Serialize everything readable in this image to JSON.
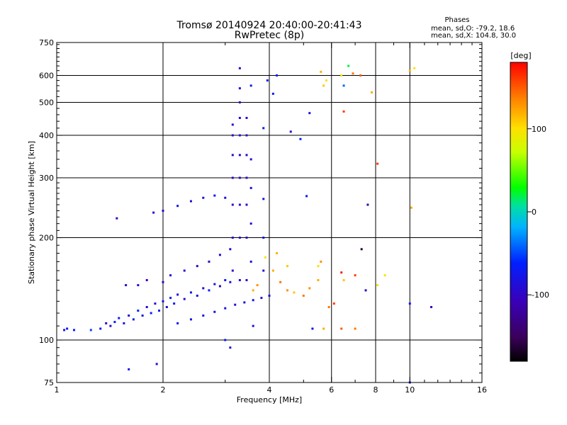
{
  "chart_data": {
    "type": "scatter",
    "title": "Tromsø 20140924 20:40:00-20:41:43",
    "subtitle": "RwPretec (8p)",
    "xlabel": "Frequency [MHz]",
    "ylabel": "Stationary phase Virtual Height [km]",
    "x_scale": "log2",
    "y_scale": "log",
    "xlim": [
      1,
      16
    ],
    "ylim": [
      75,
      750
    ],
    "x_ticks": [
      1,
      2,
      4,
      6,
      8,
      10,
      16
    ],
    "x_tick_labels": [
      "1",
      "2",
      "4",
      "6",
      "8",
      "10",
      "16"
    ],
    "x_grid": [
      2,
      4,
      6,
      8,
      10
    ],
    "y_ticks": [
      75,
      100,
      200,
      300,
      400,
      500,
      600,
      750
    ],
    "y_tick_labels": [
      "75",
      "100",
      "200",
      "300",
      "400",
      "500",
      "600",
      "750"
    ],
    "y_grid": [
      100,
      200,
      300,
      400,
      500,
      600
    ],
    "grid": true,
    "phase_box": {
      "heading": "Phases",
      "line_o": "mean, sd,O: -79.2, 18.6",
      "line_x": "mean, sd,X: 104.8, 30.0"
    },
    "colorbar": {
      "label": "[deg]",
      "min": -180,
      "max": 180,
      "ticks": [
        100,
        0,
        -100
      ],
      "tick_labels": [
        "100",
        "0",
        "-100"
      ],
      "colormap": "rainbow (black-purple-blue-cyan-green-yellow-orange-red)"
    },
    "points_note": "phase in degrees, colour-coded",
    "points": [
      [
        1.05,
        107,
        -75
      ],
      [
        1.07,
        108,
        -70
      ],
      [
        1.12,
        107,
        -60
      ],
      [
        1.25,
        107,
        -50
      ],
      [
        1.33,
        108,
        -70
      ],
      [
        1.38,
        112,
        -100
      ],
      [
        1.42,
        110,
        -90
      ],
      [
        1.46,
        113,
        -60
      ],
      [
        1.5,
        116,
        -70
      ],
      [
        1.55,
        112,
        -80
      ],
      [
        1.6,
        118,
        -90
      ],
      [
        1.65,
        115,
        -70
      ],
      [
        1.7,
        122,
        -60
      ],
      [
        1.75,
        118,
        -80
      ],
      [
        1.8,
        125,
        -100
      ],
      [
        1.85,
        120,
        -60
      ],
      [
        1.9,
        128,
        -90
      ],
      [
        1.95,
        122,
        -70
      ],
      [
        2.0,
        130,
        -80
      ],
      [
        2.05,
        125,
        -90
      ],
      [
        2.1,
        133,
        -60
      ],
      [
        2.15,
        128,
        -70
      ],
      [
        2.2,
        136,
        -80
      ],
      [
        2.3,
        132,
        -90
      ],
      [
        2.4,
        138,
        -70
      ],
      [
        2.5,
        135,
        -80
      ],
      [
        2.6,
        142,
        -90
      ],
      [
        2.7,
        140,
        -60
      ],
      [
        2.8,
        146,
        -80
      ],
      [
        2.9,
        144,
        -100
      ],
      [
        3.0,
        150,
        -70
      ],
      [
        3.1,
        148,
        -80
      ],
      [
        1.57,
        145,
        -100
      ],
      [
        1.7,
        145,
        -90
      ],
      [
        1.8,
        150,
        -110
      ],
      [
        2.0,
        148,
        -100
      ],
      [
        2.1,
        155,
        -90
      ],
      [
        2.3,
        160,
        -95
      ],
      [
        2.5,
        165,
        -100
      ],
      [
        2.7,
        170,
        -105
      ],
      [
        2.9,
        178,
        -100
      ],
      [
        3.1,
        185,
        -100
      ],
      [
        2.2,
        112,
        -70
      ],
      [
        2.4,
        115,
        -80
      ],
      [
        2.6,
        118,
        -75
      ],
      [
        2.8,
        121,
        -80
      ],
      [
        3.0,
        124,
        -80
      ],
      [
        3.2,
        127,
        -85
      ],
      [
        3.4,
        129,
        -80
      ],
      [
        3.6,
        131,
        -85
      ],
      [
        3.8,
        133,
        -80
      ],
      [
        4.0,
        135,
        -90
      ],
      [
        1.88,
        237,
        -100
      ],
      [
        2.0,
        240,
        -90
      ],
      [
        2.2,
        248,
        -80
      ],
      [
        2.4,
        256,
        -90
      ],
      [
        2.6,
        262,
        -80
      ],
      [
        2.8,
        266,
        -70
      ],
      [
        3.0,
        262,
        -80
      ],
      [
        1.48,
        228,
        -110
      ],
      [
        1.92,
        85,
        -90
      ],
      [
        1.6,
        82,
        -70
      ],
      [
        3.15,
        160,
        -100
      ],
      [
        3.15,
        200,
        -100
      ],
      [
        3.15,
        250,
        -100
      ],
      [
        3.15,
        300,
        -100
      ],
      [
        3.15,
        350,
        -100
      ],
      [
        3.15,
        400,
        -100
      ],
      [
        3.15,
        430,
        -95
      ],
      [
        3.3,
        150,
        -90
      ],
      [
        3.3,
        200,
        -95
      ],
      [
        3.3,
        250,
        -100
      ],
      [
        3.3,
        300,
        -105
      ],
      [
        3.3,
        350,
        -100
      ],
      [
        3.3,
        400,
        -95
      ],
      [
        3.3,
        450,
        -90
      ],
      [
        3.3,
        500,
        -100
      ],
      [
        3.3,
        550,
        -90
      ],
      [
        3.3,
        630,
        -100
      ],
      [
        3.45,
        150,
        -100
      ],
      [
        3.45,
        200,
        -100
      ],
      [
        3.45,
        250,
        -105
      ],
      [
        3.45,
        300,
        -95
      ],
      [
        3.45,
        350,
        -100
      ],
      [
        3.45,
        400,
        -90
      ],
      [
        3.45,
        450,
        -85
      ],
      [
        3.55,
        170,
        -80
      ],
      [
        3.55,
        220,
        -90
      ],
      [
        3.55,
        280,
        -85
      ],
      [
        3.55,
        340,
        -90
      ],
      [
        3.55,
        560,
        -70
      ],
      [
        3.85,
        160,
        -90
      ],
      [
        3.85,
        200,
        -80
      ],
      [
        3.85,
        260,
        -80
      ],
      [
        3.85,
        420,
        -70
      ],
      [
        3.95,
        580,
        -60
      ],
      [
        4.1,
        530,
        -70
      ],
      [
        4.2,
        600,
        -60
      ],
      [
        3.9,
        175,
        100
      ],
      [
        4.1,
        160,
        120
      ],
      [
        4.3,
        148,
        140
      ],
      [
        4.5,
        140,
        130
      ],
      [
        4.7,
        138,
        110
      ],
      [
        5.0,
        135,
        140
      ],
      [
        5.2,
        142,
        130
      ],
      [
        5.5,
        150,
        120
      ],
      [
        5.5,
        165,
        100
      ],
      [
        5.6,
        170,
        130
      ],
      [
        4.5,
        165,
        110
      ],
      [
        4.2,
        180,
        120
      ],
      [
        3.7,
        145,
        130
      ],
      [
        3.6,
        140,
        120
      ],
      [
        4.6,
        410,
        -100
      ],
      [
        4.9,
        390,
        -60
      ],
      [
        5.2,
        465,
        -80
      ],
      [
        5.1,
        265,
        -70
      ],
      [
        5.6,
        615,
        120
      ],
      [
        5.7,
        560,
        110
      ],
      [
        5.8,
        580,
        100
      ],
      [
        6.4,
        600,
        90
      ],
      [
        6.5,
        560,
        -40
      ],
      [
        6.7,
        640,
        20
      ],
      [
        6.5,
        470,
        160
      ],
      [
        6.9,
        608,
        140
      ],
      [
        7.25,
        600,
        150
      ],
      [
        7.8,
        535,
        120
      ],
      [
        6.4,
        158,
        170
      ],
      [
        6.5,
        150,
        110
      ],
      [
        7.0,
        155,
        160
      ],
      [
        7.3,
        185,
        -160
      ],
      [
        7.5,
        140,
        -100
      ],
      [
        7.6,
        250,
        -110
      ],
      [
        8.1,
        145,
        100
      ],
      [
        8.5,
        155,
        100
      ],
      [
        8.1,
        330,
        160
      ],
      [
        10.0,
        620,
        120
      ],
      [
        10.3,
        630,
        100
      ],
      [
        10.1,
        245,
        120
      ],
      [
        11.5,
        125,
        -110
      ],
      [
        10.0,
        128,
        -70
      ],
      [
        6.4,
        108,
        150
      ],
      [
        7.0,
        108,
        140
      ],
      [
        5.7,
        108,
        120
      ],
      [
        5.3,
        108,
        -80
      ],
      [
        10.0,
        75,
        -70
      ],
      [
        3.1,
        95,
        -90
      ],
      [
        5.9,
        125,
        140
      ],
      [
        6.1,
        128,
        160
      ],
      [
        3.6,
        110,
        -80
      ],
      [
        3.0,
        100,
        -70
      ]
    ]
  }
}
